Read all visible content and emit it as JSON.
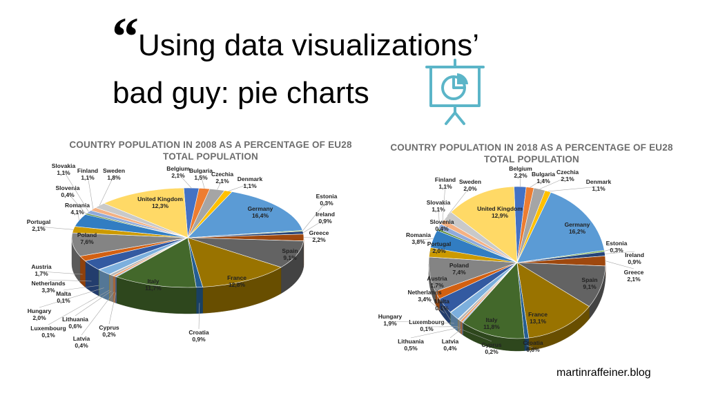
{
  "slide": {
    "quote_mark": "“",
    "title_line1": "Using data visualizations’",
    "title_line2": "bad guy: pie charts",
    "footer": "martinraffeiner.blog",
    "logo_icon": "presentation-pie-chart-icon",
    "logo_color": "#5bb5c8"
  },
  "chart_data": [
    {
      "type": "pie",
      "title": "COUNTRY POPULATION IN 2008 AS A PERCENTAGE OF EU28 TOTAL POPULATION",
      "labels": [
        "Belgium",
        "Bulgaria",
        "Czechia",
        "Denmark",
        "Germany",
        "Estonia",
        "Ireland",
        "Greece",
        "Spain",
        "France",
        "Croatia",
        "Italy",
        "Cyprus",
        "Latvia",
        "Lithuania",
        "Luxembourg",
        "Hungary",
        "Malta",
        "Netherlands",
        "Austria",
        "Poland",
        "Portugal",
        "Romania",
        "Slovenia",
        "Slovakia",
        "Finland",
        "Sweden",
        "United Kingdom"
      ],
      "values": [
        2.1,
        1.5,
        2.1,
        1.1,
        16.4,
        0.3,
        0.9,
        2.2,
        9.1,
        12.8,
        0.9,
        11.7,
        0.2,
        0.4,
        0.6,
        0.1,
        2.0,
        0.1,
        3.3,
        1.7,
        7.6,
        2.1,
        4.1,
        0.4,
        1.1,
        1.1,
        1.8,
        12.3
      ],
      "value_labels": [
        "2,1%",
        "1,5%",
        "2,1%",
        "1,1%",
        "16,4%",
        "0,3%",
        "0,9%",
        "2,2%",
        "9,1%",
        "12,8%",
        "0,9%",
        "11,7%",
        "0,2%",
        "0,4%",
        "0,6%",
        "0,1%",
        "2,0%",
        "0,1%",
        "3,3%",
        "1,7%",
        "7,6%",
        "2,1%",
        "4,1%",
        "0,4%",
        "1,1%",
        "1,1%",
        "1,8%",
        "12,3%"
      ]
    },
    {
      "type": "pie",
      "title": "COUNTRY POPULATION IN 2018 AS A PERCENTAGE OF EU28 TOTAL POPULATION",
      "labels": [
        "Belgium",
        "Bulgaria",
        "Czechia",
        "Denmark",
        "Germany",
        "Estonia",
        "Ireland",
        "Greece",
        "Spain",
        "France",
        "Croatia",
        "Italy",
        "Cyprus",
        "Latvia",
        "Lithuania",
        "Luxembourg",
        "Hungary",
        "Malta",
        "Netherlands",
        "Austria",
        "Poland",
        "Portugal",
        "Romania",
        "Slovenia",
        "Slovakia",
        "Finland",
        "Sweden",
        "United Kingdom"
      ],
      "values": [
        2.2,
        1.4,
        2.1,
        1.1,
        16.2,
        0.3,
        0.9,
        2.1,
        9.1,
        13.1,
        0.8,
        11.8,
        0.2,
        0.4,
        0.5,
        0.1,
        1.9,
        0.1,
        3.4,
        1.7,
        7.4,
        2.0,
        3.8,
        0.4,
        1.1,
        1.1,
        2.0,
        12.9
      ],
      "value_labels": [
        "2,2%",
        "1,4%",
        "2,1%",
        "1,1%",
        "16,2%",
        "0,3%",
        "0,9%",
        "2,1%",
        "9,1%",
        "13,1%",
        "0,8%",
        "11,8%",
        "0,2%",
        "0,4%",
        "0,5%",
        "0,1%",
        "1,9%",
        "0,1%",
        "3,4%",
        "1,7%",
        "7,4%",
        "2,0%",
        "3,8%",
        "0,4%",
        "1,1%",
        "1,1%",
        "2,0%",
        "12,9%"
      ]
    }
  ],
  "colors": [
    "#4472c4",
    "#ed7d31",
    "#a5a5a5",
    "#ffc000",
    "#5b9bd5",
    "#70ad47",
    "#264478",
    "#9e480e",
    "#636363",
    "#997300",
    "#255e91",
    "#43682b",
    "#698ed0",
    "#f1975a",
    "#b7b7b7",
    "#ffcd33",
    "#7cafdd",
    "#8cc168",
    "#335aa1",
    "#d26012",
    "#848484",
    "#cc9a00",
    "#327dc2",
    "#5a8a39",
    "#8faadc",
    "#f4b183",
    "#c9c9c9",
    "#ffd966"
  ]
}
